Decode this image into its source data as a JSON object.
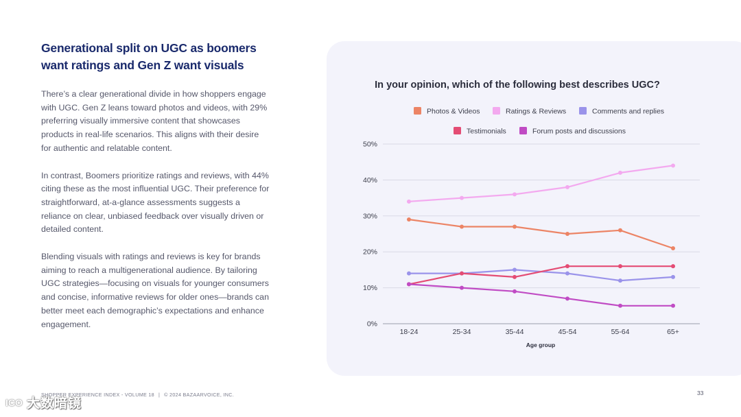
{
  "left": {
    "headline": "Generational split on UGC as boomers want ratings and Gen Z want visuals",
    "paragraphs": [
      "There’s a clear generational divide in how shoppers engage with UGC. Gen Z leans toward photos and videos, with 29% preferring visually immersive content that showcases products in real-life scenarios. This aligns with their desire for authentic and relatable content.",
      "In contrast, Boomers prioritize ratings and reviews, with 44% citing these as the most influential UGC. Their preference for straightforward, at-a-glance assessments suggests a reliance on clear, unbiased feedback over visually driven or detailed content.",
      "Blending visuals with ratings and reviews is key for brands aiming to reach a multigenerational audience. By tailoring UGC strategies—focusing on visuals for younger consumers and concise, informative reviews for older ones—brands can better meet each demographic’s expectations and enhance engagement."
    ]
  },
  "footer": {
    "source": "SHOPPER EXPERIENCE INDEX - VOLUME 18",
    "separator": "|",
    "copyright": "© 2024 BAZAARVOICE, INC.",
    "page_number": "33"
  },
  "watermark": {
    "logo": "ICO",
    "text": "大数暗镜"
  },
  "chart_data": {
    "type": "line",
    "title": "In your opinion, which of the following best describes UGC?",
    "xlabel": "Age group",
    "ylabel": "",
    "categories": [
      "18-24",
      "25-34",
      "35-44",
      "45-54",
      "55-64",
      "65+"
    ],
    "ylim": [
      0,
      50
    ],
    "yticks": [
      0,
      10,
      20,
      30,
      40,
      50
    ],
    "ytick_labels": [
      "0%",
      "10%",
      "20%",
      "30%",
      "40%",
      "50%"
    ],
    "grid": true,
    "legend_position": "top",
    "series": [
      {
        "name": "Photos & Videos",
        "color": "#ec8465",
        "values": [
          29,
          27,
          27,
          25,
          26,
          21
        ]
      },
      {
        "name": "Ratings & Reviews",
        "color": "#f3a9ef",
        "values": [
          34,
          35,
          36,
          38,
          42,
          44
        ]
      },
      {
        "name": "Comments and replies",
        "color": "#9a93ea",
        "values": [
          14,
          14,
          15,
          14,
          12,
          13
        ]
      },
      {
        "name": "Testimonials",
        "color": "#e44c74",
        "values": [
          11,
          14,
          13,
          16,
          16,
          16
        ]
      },
      {
        "name": "Forum posts and discussions",
        "color": "#c04bc4",
        "values": [
          11,
          10,
          9,
          7,
          5,
          5
        ]
      }
    ]
  }
}
